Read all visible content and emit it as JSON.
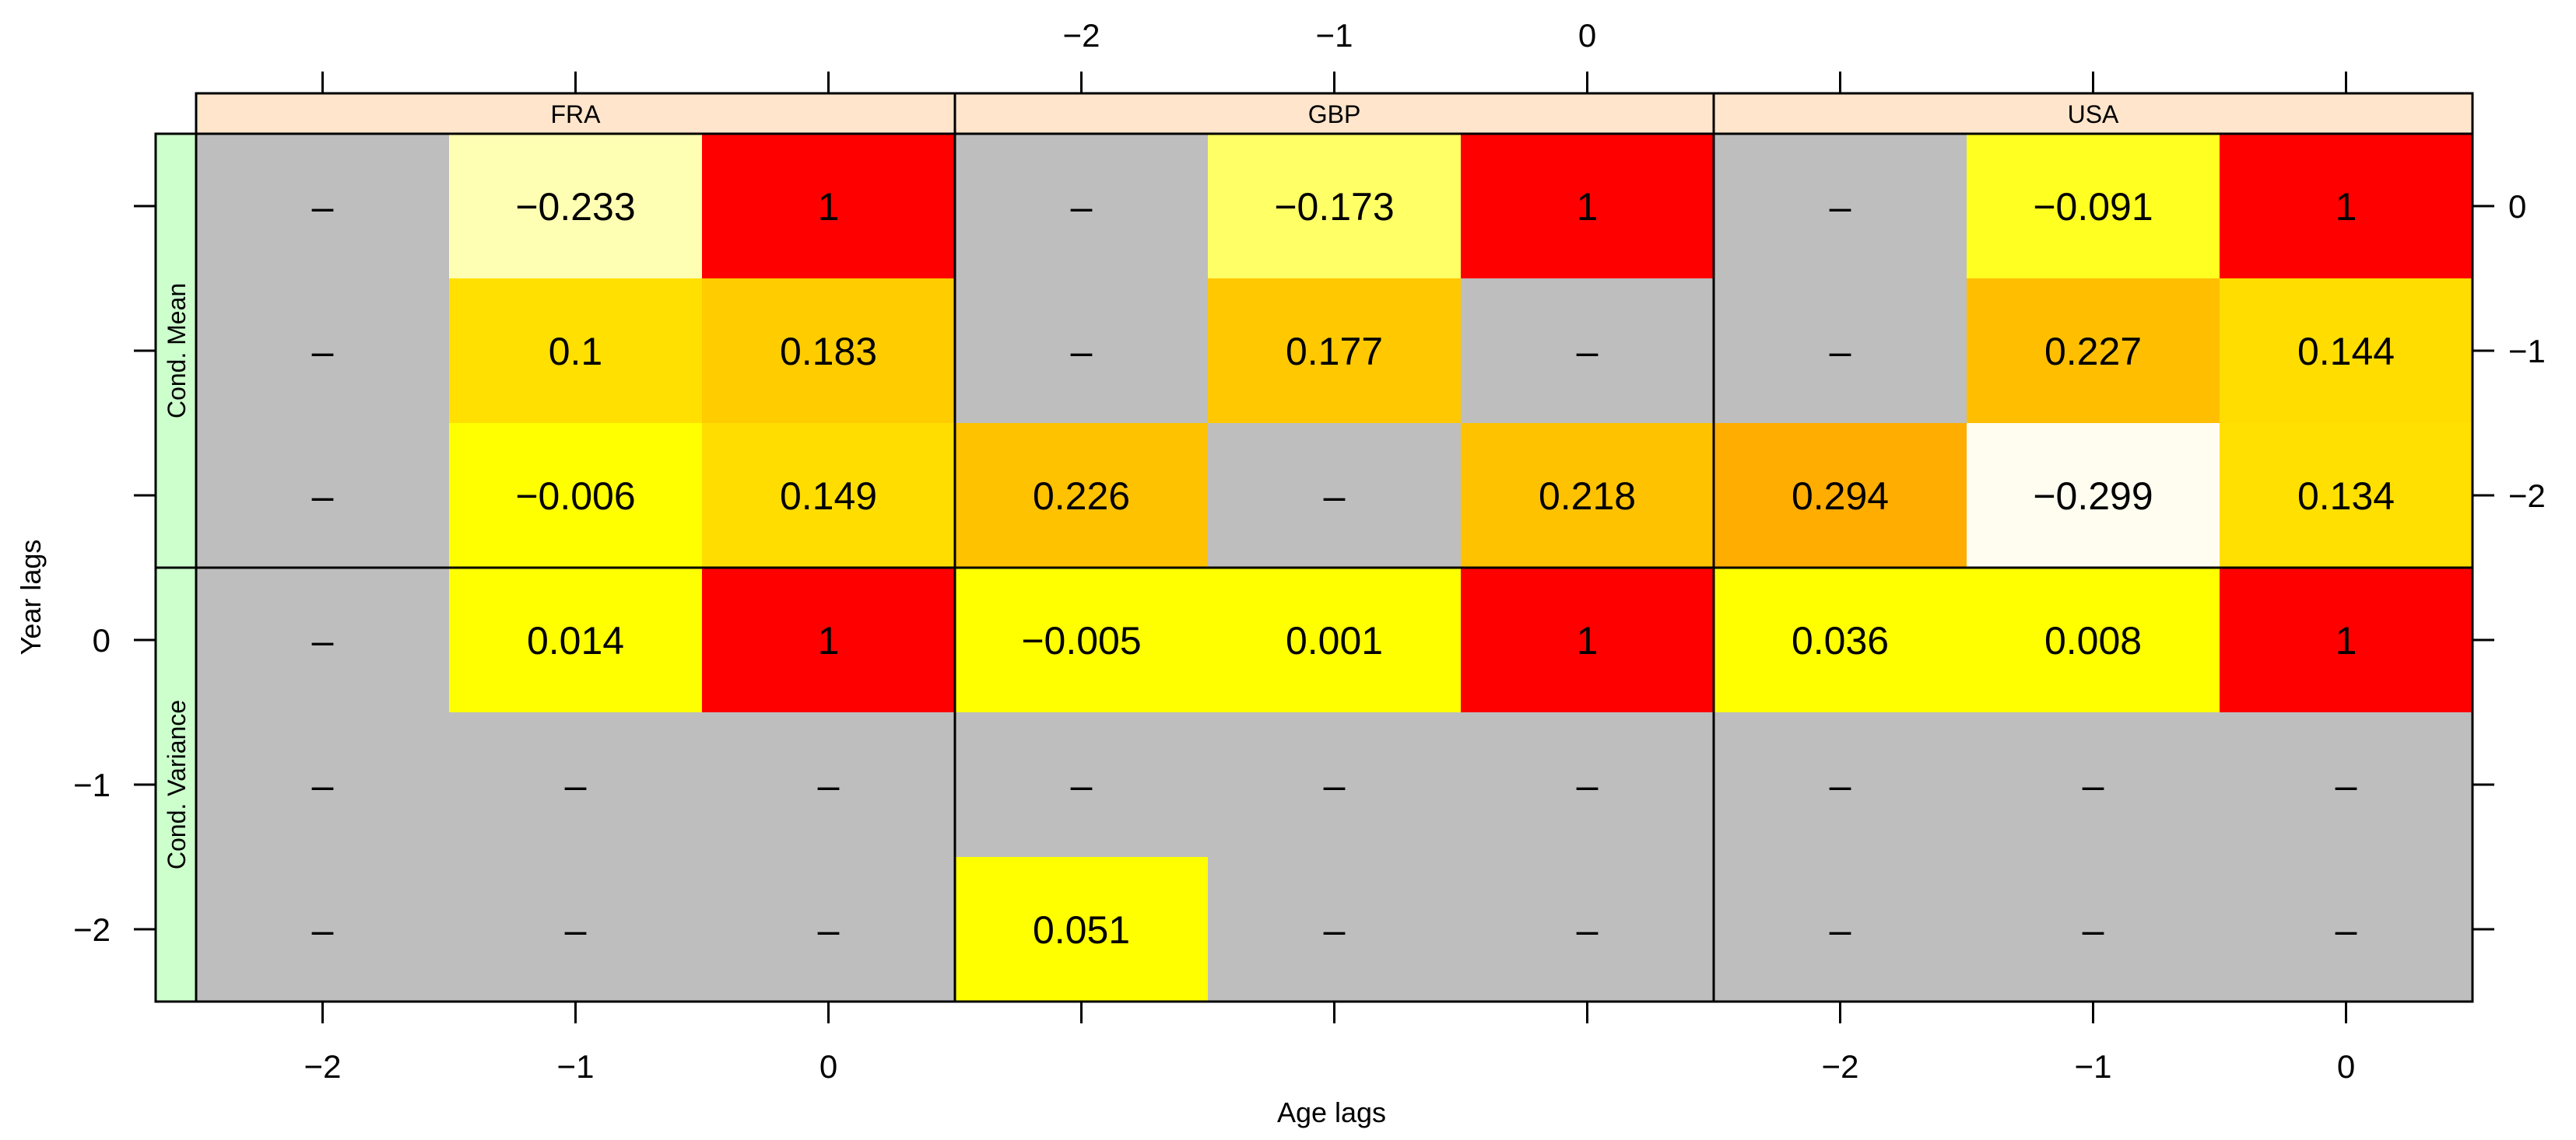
{
  "chart_data": {
    "type": "heatmap",
    "xlabel": "Age lags",
    "ylabel": "Year lags",
    "x_ticks": [
      "−2",
      "−1",
      "0"
    ],
    "y_ticks": [
      "0",
      "−1",
      "−2"
    ],
    "panels": [
      "FRA",
      "GBP",
      "USA"
    ],
    "row_groups": [
      "Cond. Mean",
      "Cond. Variance"
    ],
    "missing_symbol": "–",
    "colors": {
      "missing": "#bebebe",
      "strip_top": "#ffe5cc",
      "strip_side": "#ccffcc",
      "one": "#ff0000"
    },
    "cells": [
      {
        "panel": "FRA",
        "group": "Cond. Mean",
        "year_lag": 0,
        "age_lag": -2,
        "label": "–",
        "fill": "#bebebe"
      },
      {
        "panel": "FRA",
        "group": "Cond. Mean",
        "year_lag": 0,
        "age_lag": -1,
        "label": "−0.233",
        "fill": "#ffffb3"
      },
      {
        "panel": "FRA",
        "group": "Cond. Mean",
        "year_lag": 0,
        "age_lag": 0,
        "label": "1",
        "fill": "#ff0000"
      },
      {
        "panel": "FRA",
        "group": "Cond. Mean",
        "year_lag": -1,
        "age_lag": -2,
        "label": "–",
        "fill": "#bebebe"
      },
      {
        "panel": "FRA",
        "group": "Cond. Mean",
        "year_lag": -1,
        "age_lag": -1,
        "label": "0.1",
        "fill": "#ffe000"
      },
      {
        "panel": "FRA",
        "group": "Cond. Mean",
        "year_lag": -1,
        "age_lag": 0,
        "label": "0.183",
        "fill": "#ffcc00"
      },
      {
        "panel": "FRA",
        "group": "Cond. Mean",
        "year_lag": -2,
        "age_lag": -2,
        "label": "–",
        "fill": "#bebebe"
      },
      {
        "panel": "FRA",
        "group": "Cond. Mean",
        "year_lag": -2,
        "age_lag": -1,
        "label": "−0.006",
        "fill": "#ffff00"
      },
      {
        "panel": "FRA",
        "group": "Cond. Mean",
        "year_lag": -2,
        "age_lag": 0,
        "label": "0.149",
        "fill": "#ffdd00"
      },
      {
        "panel": "GBP",
        "group": "Cond. Mean",
        "year_lag": 0,
        "age_lag": -2,
        "label": "–",
        "fill": "#bebebe"
      },
      {
        "panel": "GBP",
        "group": "Cond. Mean",
        "year_lag": 0,
        "age_lag": -1,
        "label": "−0.173",
        "fill": "#ffff66"
      },
      {
        "panel": "GBP",
        "group": "Cond. Mean",
        "year_lag": 0,
        "age_lag": 0,
        "label": "1",
        "fill": "#ff0000"
      },
      {
        "panel": "GBP",
        "group": "Cond. Mean",
        "year_lag": -1,
        "age_lag": -2,
        "label": "–",
        "fill": "#bebebe"
      },
      {
        "panel": "GBP",
        "group": "Cond. Mean",
        "year_lag": -1,
        "age_lag": -1,
        "label": "0.177",
        "fill": "#ffc800"
      },
      {
        "panel": "GBP",
        "group": "Cond. Mean",
        "year_lag": -1,
        "age_lag": 0,
        "label": "–",
        "fill": "#bebebe"
      },
      {
        "panel": "GBP",
        "group": "Cond. Mean",
        "year_lag": -2,
        "age_lag": -2,
        "label": "0.226",
        "fill": "#ffc200"
      },
      {
        "panel": "GBP",
        "group": "Cond. Mean",
        "year_lag": -2,
        "age_lag": -1,
        "label": "–",
        "fill": "#bebebe"
      },
      {
        "panel": "GBP",
        "group": "Cond. Mean",
        "year_lag": -2,
        "age_lag": 0,
        "label": "0.218",
        "fill": "#ffc200"
      },
      {
        "panel": "USA",
        "group": "Cond. Mean",
        "year_lag": 0,
        "age_lag": -2,
        "label": "–",
        "fill": "#bebebe"
      },
      {
        "panel": "USA",
        "group": "Cond. Mean",
        "year_lag": 0,
        "age_lag": -1,
        "label": "−0.091",
        "fill": "#ffff22"
      },
      {
        "panel": "USA",
        "group": "Cond. Mean",
        "year_lag": 0,
        "age_lag": 0,
        "label": "1",
        "fill": "#ff0000"
      },
      {
        "panel": "USA",
        "group": "Cond. Mean",
        "year_lag": -1,
        "age_lag": -2,
        "label": "–",
        "fill": "#bebebe"
      },
      {
        "panel": "USA",
        "group": "Cond. Mean",
        "year_lag": -1,
        "age_lag": -1,
        "label": "0.227",
        "fill": "#ffbf00"
      },
      {
        "panel": "USA",
        "group": "Cond. Mean",
        "year_lag": -1,
        "age_lag": 0,
        "label": "0.144",
        "fill": "#ffdd00"
      },
      {
        "panel": "USA",
        "group": "Cond. Mean",
        "year_lag": -2,
        "age_lag": -2,
        "label": "0.294",
        "fill": "#ffad00"
      },
      {
        "panel": "USA",
        "group": "Cond. Mean",
        "year_lag": -2,
        "age_lag": -1,
        "label": "−0.299",
        "fill": "#fffdf0"
      },
      {
        "panel": "USA",
        "group": "Cond. Mean",
        "year_lag": -2,
        "age_lag": 0,
        "label": "0.134",
        "fill": "#ffe000"
      },
      {
        "panel": "FRA",
        "group": "Cond. Variance",
        "year_lag": 0,
        "age_lag": -2,
        "label": "–",
        "fill": "#bebebe"
      },
      {
        "panel": "FRA",
        "group": "Cond. Variance",
        "year_lag": 0,
        "age_lag": -1,
        "label": "0.014",
        "fill": "#ffff00"
      },
      {
        "panel": "FRA",
        "group": "Cond. Variance",
        "year_lag": 0,
        "age_lag": 0,
        "label": "1",
        "fill": "#ff0000"
      },
      {
        "panel": "FRA",
        "group": "Cond. Variance",
        "year_lag": -1,
        "age_lag": -2,
        "label": "–",
        "fill": "#bebebe"
      },
      {
        "panel": "FRA",
        "group": "Cond. Variance",
        "year_lag": -1,
        "age_lag": -1,
        "label": "–",
        "fill": "#bebebe"
      },
      {
        "panel": "FRA",
        "group": "Cond. Variance",
        "year_lag": -1,
        "age_lag": 0,
        "label": "–",
        "fill": "#bebebe"
      },
      {
        "panel": "FRA",
        "group": "Cond. Variance",
        "year_lag": -2,
        "age_lag": -2,
        "label": "–",
        "fill": "#bebebe"
      },
      {
        "panel": "FRA",
        "group": "Cond. Variance",
        "year_lag": -2,
        "age_lag": -1,
        "label": "–",
        "fill": "#bebebe"
      },
      {
        "panel": "FRA",
        "group": "Cond. Variance",
        "year_lag": -2,
        "age_lag": 0,
        "label": "–",
        "fill": "#bebebe"
      },
      {
        "panel": "GBP",
        "group": "Cond. Variance",
        "year_lag": 0,
        "age_lag": -2,
        "label": "−0.005",
        "fill": "#ffff00"
      },
      {
        "panel": "GBP",
        "group": "Cond. Variance",
        "year_lag": 0,
        "age_lag": -1,
        "label": "0.001",
        "fill": "#ffff00"
      },
      {
        "panel": "GBP",
        "group": "Cond. Variance",
        "year_lag": 0,
        "age_lag": 0,
        "label": "1",
        "fill": "#ff0000"
      },
      {
        "panel": "GBP",
        "group": "Cond. Variance",
        "year_lag": -1,
        "age_lag": -2,
        "label": "–",
        "fill": "#bebebe"
      },
      {
        "panel": "GBP",
        "group": "Cond. Variance",
        "year_lag": -1,
        "age_lag": -1,
        "label": "–",
        "fill": "#bebebe"
      },
      {
        "panel": "GBP",
        "group": "Cond. Variance",
        "year_lag": -1,
        "age_lag": 0,
        "label": "–",
        "fill": "#bebebe"
      },
      {
        "panel": "GBP",
        "group": "Cond. Variance",
        "year_lag": -2,
        "age_lag": -2,
        "label": "0.051",
        "fill": "#ffff00"
      },
      {
        "panel": "GBP",
        "group": "Cond. Variance",
        "year_lag": -2,
        "age_lag": -1,
        "label": "–",
        "fill": "#bebebe"
      },
      {
        "panel": "GBP",
        "group": "Cond. Variance",
        "year_lag": -2,
        "age_lag": 0,
        "label": "–",
        "fill": "#bebebe"
      },
      {
        "panel": "USA",
        "group": "Cond. Variance",
        "year_lag": 0,
        "age_lag": -2,
        "label": "0.036",
        "fill": "#ffff00"
      },
      {
        "panel": "USA",
        "group": "Cond. Variance",
        "year_lag": 0,
        "age_lag": -1,
        "label": "0.008",
        "fill": "#ffff00"
      },
      {
        "panel": "USA",
        "group": "Cond. Variance",
        "year_lag": 0,
        "age_lag": 0,
        "label": "1",
        "fill": "#ff0000"
      },
      {
        "panel": "USA",
        "group": "Cond. Variance",
        "year_lag": -1,
        "age_lag": -2,
        "label": "–",
        "fill": "#bebebe"
      },
      {
        "panel": "USA",
        "group": "Cond. Variance",
        "year_lag": -1,
        "age_lag": -1,
        "label": "–",
        "fill": "#bebebe"
      },
      {
        "panel": "USA",
        "group": "Cond. Variance",
        "year_lag": -1,
        "age_lag": 0,
        "label": "–",
        "fill": "#bebebe"
      },
      {
        "panel": "USA",
        "group": "Cond. Variance",
        "year_lag": -2,
        "age_lag": -2,
        "label": "–",
        "fill": "#bebebe"
      },
      {
        "panel": "USA",
        "group": "Cond. Variance",
        "year_lag": -2,
        "age_lag": -1,
        "label": "–",
        "fill": "#bebebe"
      },
      {
        "panel": "USA",
        "group": "Cond. Variance",
        "year_lag": -2,
        "age_lag": 0,
        "label": "–",
        "fill": "#bebebe"
      }
    ]
  }
}
